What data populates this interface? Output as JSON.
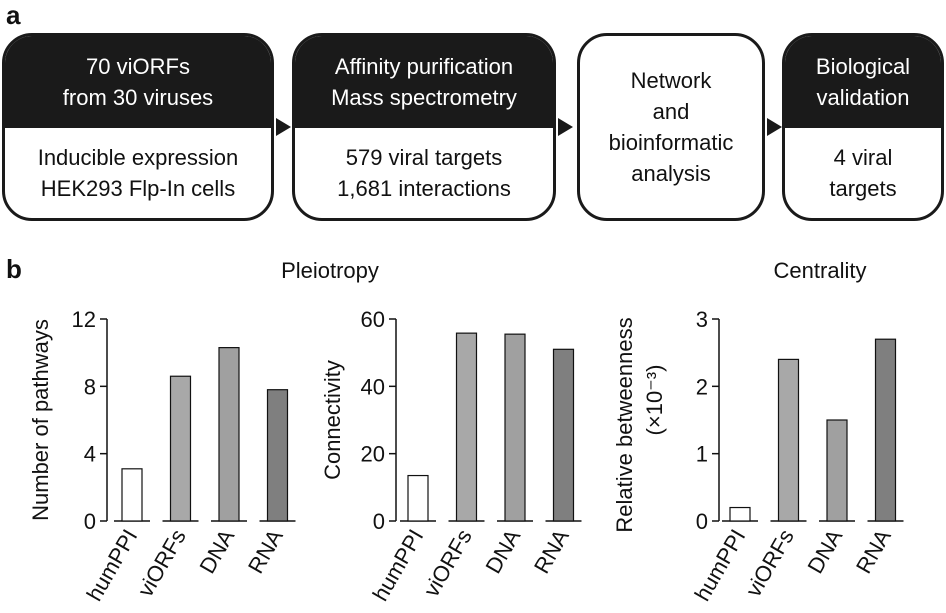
{
  "panel_a": {
    "letter": "a",
    "steps": [
      {
        "head": [
          "70 viORFs",
          "from 30 viruses"
        ],
        "body": [
          "Inducible expression",
          "HEK293 Flp-In cells"
        ]
      },
      {
        "head": [
          "Affinity purification",
          "Mass spectrometry"
        ],
        "body": [
          "579 viral targets",
          "1,681 interactions"
        ]
      },
      {
        "head": [],
        "body": [
          "Network",
          "and",
          "bioinformatic",
          "analysis"
        ]
      },
      {
        "head": [
          "Biological",
          "validation"
        ],
        "body": [
          "4 viral",
          "targets"
        ]
      }
    ]
  },
  "panel_b": {
    "letter": "b",
    "group_titles": {
      "pleiotropy": "Pleiotropy",
      "centrality": "Centrality"
    }
  },
  "colors": {
    "humPPI": "#ffffff",
    "viORFs": "#a8a8a8",
    "DNA": "#a0a0a0",
    "RNA": "#7f7f7f",
    "dark": "#1a1a1a"
  },
  "chart_data": [
    {
      "type": "bar",
      "categories": [
        "humPPI",
        "viORFs",
        "DNA",
        "RNA"
      ],
      "values": [
        3.1,
        8.6,
        10.3,
        7.8
      ],
      "ylabel": "Number of pathways",
      "ylim": [
        0,
        12
      ],
      "yticks": [
        "0",
        "4",
        "8",
        "12"
      ],
      "grid": false
    },
    {
      "type": "bar",
      "categories": [
        "humPPI",
        "viORFs",
        "DNA",
        "RNA"
      ],
      "values": [
        13.5,
        55.8,
        55.5,
        51.0
      ],
      "ylabel": "Connectivity",
      "ylim": [
        0,
        60
      ],
      "yticks": [
        "0",
        "20",
        "40",
        "60"
      ],
      "grid": false
    },
    {
      "type": "bar",
      "categories": [
        "humPPI",
        "viORFs",
        "DNA",
        "RNA"
      ],
      "values": [
        0.2,
        2.4,
        1.5,
        2.7
      ],
      "ylabel": "Relative betweenness",
      "ylabel2": "(×10⁻³)",
      "ylim": [
        0,
        3
      ],
      "yticks": [
        "0",
        "1",
        "2",
        "3"
      ],
      "grid": false
    }
  ]
}
